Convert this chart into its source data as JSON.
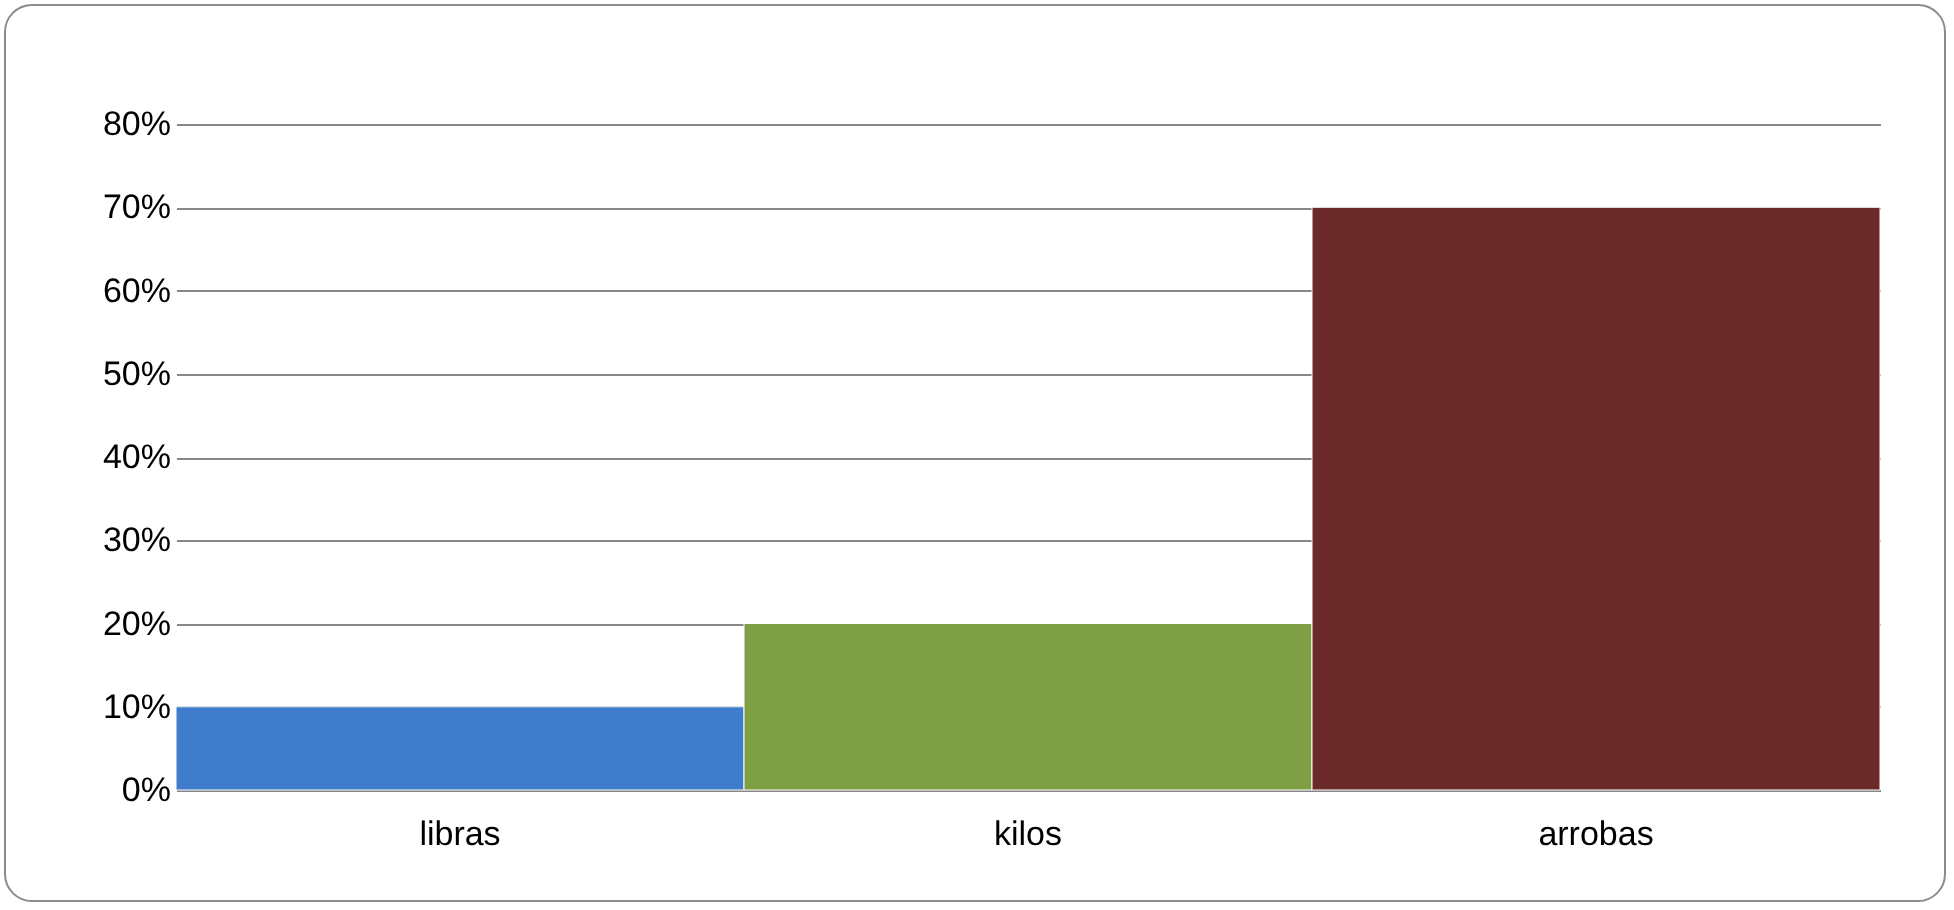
{
  "chart_data": {
    "type": "bar",
    "categories": [
      "libras",
      "kilos",
      "arrobas"
    ],
    "values": [
      10,
      20,
      70
    ],
    "colors": [
      "#3f7ccc",
      "#7f9f44",
      "#6b2a2a"
    ],
    "ylim": [
      0,
      80
    ],
    "yticks": [
      {
        "value": 0,
        "label": "0%"
      },
      {
        "value": 10,
        "label": "10%"
      },
      {
        "value": 20,
        "label": "20%"
      },
      {
        "value": 30,
        "label": "30%"
      },
      {
        "value": 40,
        "label": "40%"
      },
      {
        "value": 50,
        "label": "50%"
      },
      {
        "value": 60,
        "label": "60%"
      },
      {
        "value": 70,
        "label": "70%"
      },
      {
        "value": 80,
        "label": "80%"
      }
    ],
    "grid": "y"
  }
}
